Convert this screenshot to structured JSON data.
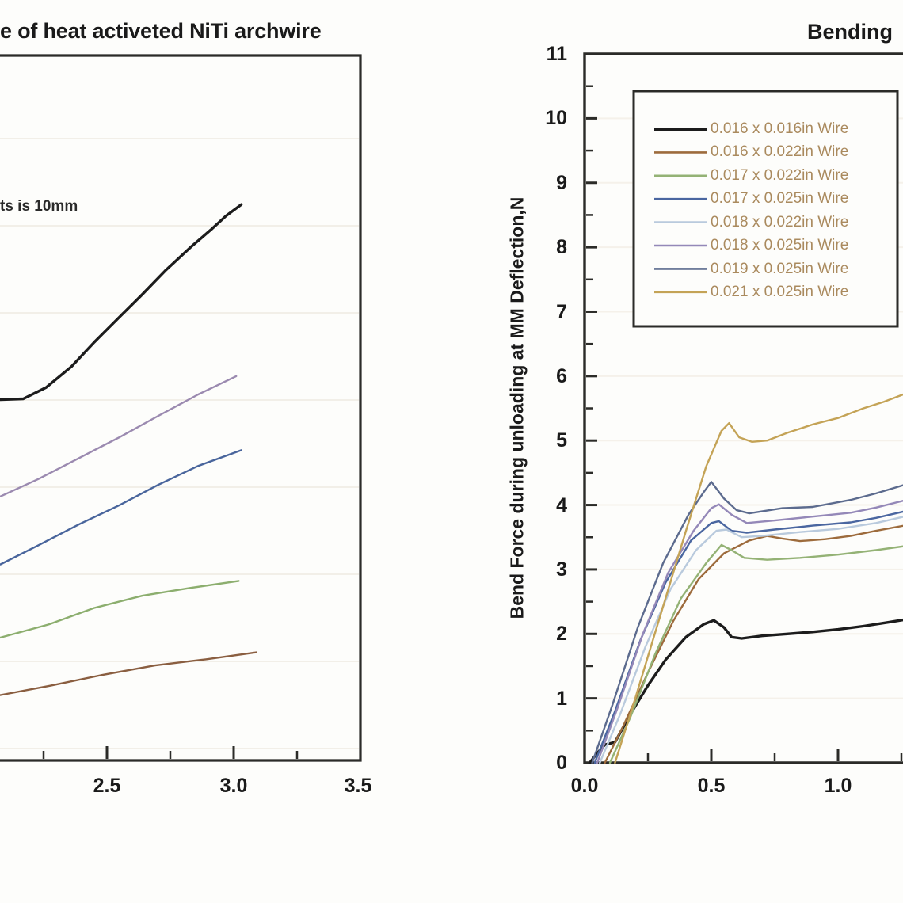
{
  "chart_data": [
    {
      "type": "line",
      "title": "e of heat activeted NiTi archwire",
      "annotation": "ts is 10mm",
      "x_tick_labels": [
        "2.5",
        "3.0",
        "3.5"
      ],
      "x_range_visible": [
        2.08,
        3.5
      ],
      "y_axis_note": "y axis cropped out of view; values estimated in gridline units (1 unit per faint gridline, 0 at bottom axis)",
      "grid": "faint horizontal gridlines",
      "legend_position": "none (cropped)",
      "series": [
        {
          "name": "black-curve",
          "color": "#1c1c1c",
          "width": 3.4,
          "points": [
            [
              2.08,
              4.14
            ],
            [
              2.17,
              4.15
            ],
            [
              2.26,
              4.28
            ],
            [
              2.36,
              4.52
            ],
            [
              2.45,
              4.8
            ],
            [
              2.55,
              5.09
            ],
            [
              2.64,
              5.35
            ],
            [
              2.73,
              5.62
            ],
            [
              2.83,
              5.89
            ],
            [
              2.91,
              6.09
            ],
            [
              2.97,
              6.25
            ],
            [
              3.03,
              6.38
            ]
          ]
        },
        {
          "name": "purple-curve",
          "color": "#9b8ab0",
          "width": 2.4,
          "points": [
            [
              2.08,
              3.03
            ],
            [
              2.23,
              3.23
            ],
            [
              2.39,
              3.47
            ],
            [
              2.55,
              3.71
            ],
            [
              2.7,
              3.95
            ],
            [
              2.86,
              4.2
            ],
            [
              3.01,
              4.41
            ]
          ]
        },
        {
          "name": "blue-curve",
          "color": "#49659c",
          "width": 2.4,
          "points": [
            [
              2.08,
              2.25
            ],
            [
              2.23,
              2.47
            ],
            [
              2.39,
              2.71
            ],
            [
              2.55,
              2.93
            ],
            [
              2.7,
              3.16
            ],
            [
              2.86,
              3.38
            ],
            [
              3.03,
              3.56
            ]
          ]
        },
        {
          "name": "green-curve",
          "color": "#8cae6e",
          "width": 2.4,
          "points": [
            [
              2.08,
              1.41
            ],
            [
              2.27,
              1.56
            ],
            [
              2.45,
              1.75
            ],
            [
              2.64,
              1.89
            ],
            [
              2.83,
              1.98
            ],
            [
              3.02,
              2.06
            ]
          ]
        },
        {
          "name": "brown-curve",
          "color": "#8a5e40",
          "width": 2.4,
          "points": [
            [
              2.08,
              0.75
            ],
            [
              2.28,
              0.86
            ],
            [
              2.48,
              0.98
            ],
            [
              2.69,
              1.09
            ],
            [
              2.89,
              1.16
            ],
            [
              3.09,
              1.24
            ]
          ]
        }
      ]
    },
    {
      "type": "line",
      "title": "Bending",
      "ylabel": "Bend Force during unloading at MM Deflection,N",
      "x_tick_labels": [
        "0.0",
        "0.5",
        "1.0"
      ],
      "y_tick_labels": [
        "0",
        "1",
        "2",
        "3",
        "4",
        "5",
        "6",
        "7",
        "8",
        "9",
        "10",
        "11"
      ],
      "xlim": [
        0,
        1.26
      ],
      "ylim": [
        0,
        11
      ],
      "grid": "faint horizontal gridlines at integer values",
      "legend_position": "upper left",
      "legend_text_color": "#aa8a5e",
      "series": [
        {
          "label": "0.016 x 0.016in Wire",
          "color": "#1c1c1c",
          "width": 3.4,
          "points": [
            [
              0.02,
              0
            ],
            [
              0.05,
              0.15
            ],
            [
              0.08,
              0.28
            ],
            [
              0.12,
              0.32
            ],
            [
              0.18,
              0.75
            ],
            [
              0.25,
              1.2
            ],
            [
              0.32,
              1.6
            ],
            [
              0.4,
              1.95
            ],
            [
              0.47,
              2.15
            ],
            [
              0.51,
              2.21
            ],
            [
              0.55,
              2.1
            ],
            [
              0.58,
              1.95
            ],
            [
              0.62,
              1.93
            ],
            [
              0.7,
              1.97
            ],
            [
              0.8,
              2.0
            ],
            [
              0.9,
              2.03
            ],
            [
              1.0,
              2.07
            ],
            [
              1.1,
              2.12
            ],
            [
              1.2,
              2.18
            ],
            [
              1.26,
              2.22
            ]
          ]
        },
        {
          "label": "0.016 x 0.022in Wire",
          "color": "#9d6b3c",
          "width": 2.4,
          "points": [
            [
              0.08,
              0
            ],
            [
              0.15,
              0.55
            ],
            [
              0.25,
              1.4
            ],
            [
              0.35,
              2.2
            ],
            [
              0.45,
              2.85
            ],
            [
              0.55,
              3.25
            ],
            [
              0.65,
              3.45
            ],
            [
              0.72,
              3.52
            ],
            [
              0.78,
              3.48
            ],
            [
              0.85,
              3.44
            ],
            [
              0.95,
              3.47
            ],
            [
              1.05,
              3.52
            ],
            [
              1.15,
              3.6
            ],
            [
              1.26,
              3.68
            ]
          ]
        },
        {
          "label": "0.017 x 0.022in Wire",
          "color": "#94b275",
          "width": 2.4,
          "points": [
            [
              0.1,
              0
            ],
            [
              0.18,
              0.7
            ],
            [
              0.28,
              1.7
            ],
            [
              0.38,
              2.55
            ],
            [
              0.48,
              3.1
            ],
            [
              0.54,
              3.38
            ],
            [
              0.58,
              3.3
            ],
            [
              0.63,
              3.18
            ],
            [
              0.72,
              3.15
            ],
            [
              0.85,
              3.18
            ],
            [
              1.0,
              3.23
            ],
            [
              1.15,
              3.3
            ],
            [
              1.26,
              3.36
            ]
          ]
        },
        {
          "label": "0.017 x 0.025in Wire",
          "color": "#4a66a0",
          "width": 2.4,
          "points": [
            [
              0.04,
              0
            ],
            [
              0.12,
              0.8
            ],
            [
              0.22,
              1.9
            ],
            [
              0.32,
              2.8
            ],
            [
              0.42,
              3.45
            ],
            [
              0.5,
              3.72
            ],
            [
              0.53,
              3.75
            ],
            [
              0.58,
              3.6
            ],
            [
              0.64,
              3.57
            ],
            [
              0.75,
              3.62
            ],
            [
              0.9,
              3.68
            ],
            [
              1.05,
              3.73
            ],
            [
              1.15,
              3.8
            ],
            [
              1.26,
              3.9
            ]
          ]
        },
        {
          "label": "0.018 x 0.022in Wire",
          "color": "#b9cadd",
          "width": 2.4,
          "points": [
            [
              0.06,
              0
            ],
            [
              0.14,
              0.75
            ],
            [
              0.24,
              1.8
            ],
            [
              0.34,
              2.7
            ],
            [
              0.44,
              3.3
            ],
            [
              0.52,
              3.6
            ],
            [
              0.56,
              3.62
            ],
            [
              0.62,
              3.5
            ],
            [
              0.7,
              3.52
            ],
            [
              0.85,
              3.58
            ],
            [
              1.0,
              3.63
            ],
            [
              1.15,
              3.72
            ],
            [
              1.26,
              3.82
            ]
          ]
        },
        {
          "label": "0.018 x 0.025in Wire",
          "color": "#9488b8",
          "width": 2.4,
          "points": [
            [
              0.05,
              0
            ],
            [
              0.13,
              0.85
            ],
            [
              0.23,
              2.0
            ],
            [
              0.33,
              2.95
            ],
            [
              0.43,
              3.6
            ],
            [
              0.5,
              3.95
            ],
            [
              0.53,
              4.01
            ],
            [
              0.58,
              3.85
            ],
            [
              0.64,
              3.72
            ],
            [
              0.75,
              3.76
            ],
            [
              0.9,
              3.82
            ],
            [
              1.05,
              3.88
            ],
            [
              1.15,
              3.96
            ],
            [
              1.26,
              4.07
            ]
          ]
        },
        {
          "label": "0.019 x 0.025in Wire",
          "color": "#5c6b8e",
          "width": 2.4,
          "points": [
            [
              0.03,
              0
            ],
            [
              0.11,
              0.9
            ],
            [
              0.21,
              2.1
            ],
            [
              0.31,
              3.1
            ],
            [
              0.41,
              3.85
            ],
            [
              0.47,
              4.2
            ],
            [
              0.5,
              4.36
            ],
            [
              0.55,
              4.1
            ],
            [
              0.6,
              3.92
            ],
            [
              0.65,
              3.87
            ],
            [
              0.78,
              3.95
            ],
            [
              0.9,
              3.97
            ],
            [
              1.05,
              4.08
            ],
            [
              1.15,
              4.18
            ],
            [
              1.26,
              4.31
            ]
          ]
        },
        {
          "label": "0.021 x 0.025in Wire",
          "color": "#c4a356",
          "width": 2.4,
          "points": [
            [
              0.12,
              0
            ],
            [
              0.2,
              1.0
            ],
            [
              0.3,
              2.3
            ],
            [
              0.4,
              3.6
            ],
            [
              0.48,
              4.6
            ],
            [
              0.54,
              5.15
            ],
            [
              0.57,
              5.27
            ],
            [
              0.61,
              5.05
            ],
            [
              0.66,
              4.98
            ],
            [
              0.72,
              5.0
            ],
            [
              0.8,
              5.12
            ],
            [
              0.9,
              5.25
            ],
            [
              1.0,
              5.35
            ],
            [
              1.1,
              5.5
            ],
            [
              1.18,
              5.6
            ],
            [
              1.26,
              5.72
            ]
          ]
        }
      ]
    }
  ]
}
